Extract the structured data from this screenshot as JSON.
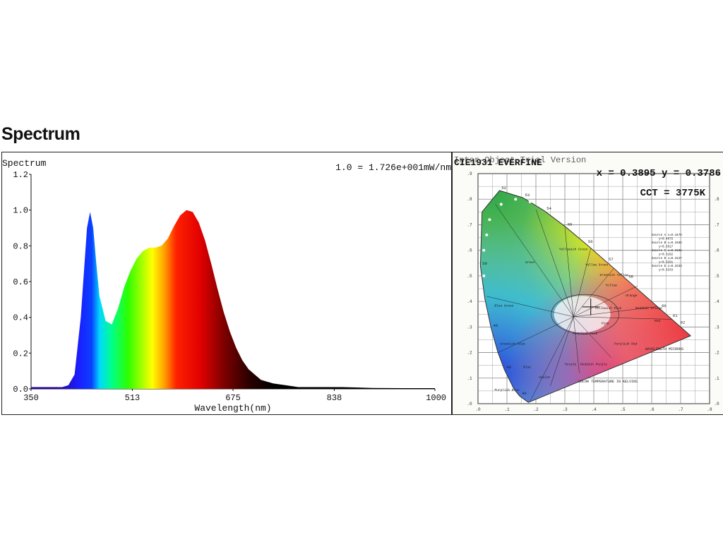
{
  "page": {
    "heading": "Spectrum"
  },
  "chart_data": [
    {
      "type": "area",
      "title": "Spectrum",
      "annotation": "1.0 = 1.726e+001mW/nm",
      "xlabel": "Wavelength(nm)",
      "ylabel": "",
      "xlim": [
        350,
        1000
      ],
      "ylim": [
        0,
        1.2
      ],
      "x_ticks": [
        350,
        513,
        675,
        838,
        1000
      ],
      "y_ticks": [
        0.0,
        0.2,
        0.4,
        0.6,
        0.8,
        1.0,
        1.2
      ],
      "y_tick_labels": [
        "0.0",
        "0.2",
        "0.4",
        "0.6",
        "0.8",
        "1.0",
        "1.2"
      ],
      "grid": false,
      "fill": "wavelength-rainbow",
      "series": [
        {
          "x": [
            350,
            380,
            400,
            410,
            420,
            430,
            440,
            445,
            450,
            455,
            460,
            470,
            480,
            490,
            500,
            510,
            520,
            530,
            540,
            550,
            560,
            570,
            580,
            590,
            600,
            610,
            620,
            630,
            640,
            650,
            660,
            670,
            680,
            690,
            700,
            710,
            720,
            730,
            740,
            760,
            780,
            800,
            820,
            850,
            900,
            950,
            1000
          ],
          "values": [
            0.01,
            0.01,
            0.01,
            0.02,
            0.08,
            0.4,
            0.9,
            0.99,
            0.9,
            0.7,
            0.52,
            0.38,
            0.36,
            0.45,
            0.57,
            0.66,
            0.73,
            0.77,
            0.79,
            0.79,
            0.8,
            0.84,
            0.91,
            0.97,
            1.0,
            0.99,
            0.93,
            0.83,
            0.7,
            0.56,
            0.43,
            0.32,
            0.23,
            0.16,
            0.11,
            0.08,
            0.05,
            0.04,
            0.03,
            0.02,
            0.01,
            0.01,
            0.01,
            0.01,
            0.005,
            0.004,
            0.004
          ]
        }
      ]
    },
    {
      "type": "scatter",
      "title": "CIE1931 EVERFINE",
      "overlay_text": "Inter-Object Trial Version",
      "readout": "x = 0.3895 y = 0.3786",
      "cct": "CCT = 3775K",
      "xlim": [
        0,
        0.8
      ],
      "ylim": [
        0,
        0.9
      ],
      "x_ticks": [
        0,
        0.1,
        0.2,
        0.3,
        0.4,
        0.5,
        0.6,
        0.7,
        0.8
      ],
      "y_ticks": [
        0,
        0.1,
        0.2,
        0.3,
        0.4,
        0.5,
        0.6,
        0.7,
        0.8,
        0.9
      ],
      "x_tick_labels": [
        ".0",
        ".1",
        ".2",
        ".3",
        ".4",
        ".5",
        ".6",
        ".7",
        ".8"
      ],
      "y_tick_labels": [
        ".0",
        ".1",
        ".2",
        ".3",
        ".4",
        ".5",
        ".6",
        ".7",
        ".8",
        ".9"
      ],
      "point": {
        "x": 0.3895,
        "y": 0.3786
      },
      "locus": [
        [
          0.1741,
          0.005
        ],
        [
          0.144,
          0.0297
        ],
        [
          0.1241,
          0.0578
        ],
        [
          0.0913,
          0.1327
        ],
        [
          0.0687,
          0.2007
        ],
        [
          0.0454,
          0.295
        ],
        [
          0.0235,
          0.4127
        ],
        [
          0.0082,
          0.5384
        ],
        [
          0.0139,
          0.7502
        ],
        [
          0.0743,
          0.8338
        ],
        [
          0.1547,
          0.8059
        ],
        [
          0.2296,
          0.7543
        ],
        [
          0.3016,
          0.6923
        ],
        [
          0.3731,
          0.6245
        ],
        [
          0.4441,
          0.5547
        ],
        [
          0.5125,
          0.4866
        ],
        [
          0.5752,
          0.4242
        ],
        [
          0.627,
          0.3725
        ],
        [
          0.6658,
          0.334
        ],
        [
          0.6915,
          0.3083
        ],
        [
          0.7347,
          0.2653
        ]
      ],
      "locus_wavelength_labels": [
        {
          "label": "52",
          "x": 0.074,
          "y": 0.834
        },
        {
          "label": "53",
          "x": 0.155,
          "y": 0.806
        },
        {
          "label": "54",
          "x": 0.23,
          "y": 0.754
        },
        {
          "label": "55",
          "x": 0.302,
          "y": 0.692
        },
        {
          "label": "56",
          "x": 0.373,
          "y": 0.624
        },
        {
          "label": "57",
          "x": 0.444,
          "y": 0.555
        },
        {
          "label": "58",
          "x": 0.513,
          "y": 0.487
        },
        {
          "label": "60",
          "x": 0.627,
          "y": 0.373
        },
        {
          "label": "61",
          "x": 0.666,
          "y": 0.334
        },
        {
          "label": "62",
          "x": 0.692,
          "y": 0.308
        },
        {
          "label": "50",
          "x": 0.008,
          "y": 0.538
        },
        {
          "label": "49",
          "x": 0.045,
          "y": 0.295
        },
        {
          "label": "48",
          "x": 0.091,
          "y": 0.133
        },
        {
          "label": "46",
          "x": 0.144,
          "y": 0.03
        }
      ],
      "region_labels": [
        {
          "label": "Green",
          "x": 0.18,
          "y": 0.55
        },
        {
          "label": "Yellowish Green",
          "x": 0.33,
          "y": 0.6
        },
        {
          "label": "Yellow Green",
          "x": 0.41,
          "y": 0.54
        },
        {
          "label": "Greenish Yellow",
          "x": 0.47,
          "y": 0.5
        },
        {
          "label": "Yellow",
          "x": 0.46,
          "y": 0.46
        },
        {
          "label": "Orange",
          "x": 0.53,
          "y": 0.42
        },
        {
          "label": "Reddish Orange",
          "x": 0.59,
          "y": 0.37
        },
        {
          "label": "Red",
          "x": 0.62,
          "y": 0.32
        },
        {
          "label": "Yellowish Pink",
          "x": 0.45,
          "y": 0.37
        },
        {
          "label": "Pink",
          "x": 0.44,
          "y": 0.31
        },
        {
          "label": "Blue Green",
          "x": 0.09,
          "y": 0.38
        },
        {
          "label": "Greenish Blue",
          "x": 0.12,
          "y": 0.23
        },
        {
          "label": "Blue",
          "x": 0.17,
          "y": 0.14
        },
        {
          "label": "Violet",
          "x": 0.23,
          "y": 0.1
        },
        {
          "label": "Purple",
          "x": 0.32,
          "y": 0.15
        },
        {
          "label": "Reddish Purple",
          "x": 0.4,
          "y": 0.15
        },
        {
          "label": "Purplish Red",
          "x": 0.51,
          "y": 0.23
        },
        {
          "label": "Purplish Pink",
          "x": 0.37,
          "y": 0.27
        },
        {
          "label": "Purplish Blue",
          "x": 0.1,
          "y": 0.05
        }
      ],
      "legend_lines": [
        "Source A x=0.4476",
        "y=0.4075",
        "Source B x=0.3485",
        "y=0.3517",
        "Source C x=0.3101",
        "y=0.3162",
        "Source D x=0.3127",
        "y=0.3291",
        "Source E x=0.3333",
        "y=0.3333"
      ],
      "annotations": [
        "WAVELENGTH MICRONS",
        "COLOR TEMPERATURE IN KELVINS"
      ],
      "colors": {
        "cie_title": "#111111",
        "readout": "#111111"
      }
    }
  ]
}
